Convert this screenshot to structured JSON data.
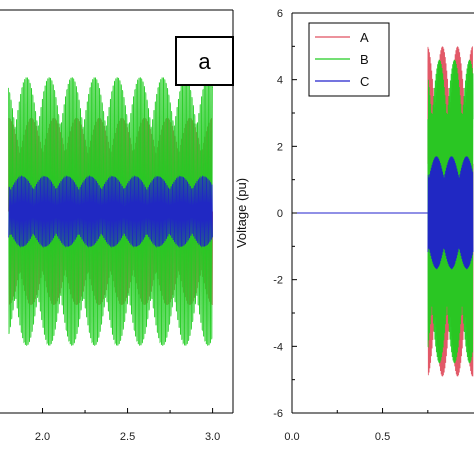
{
  "chart_data": [
    {
      "panel": "a",
      "type": "line",
      "x_ticks": [
        "2.0",
        "2.5",
        "3.0"
      ],
      "xlim": [
        1.75,
        3.12
      ],
      "ylim": [
        -6,
        6
      ],
      "signal_start": 1.8,
      "signal_end": 3.0,
      "series": [
        {
          "color": "#e05060",
          "amplitude": 3.2
        },
        {
          "color": "#20cc20",
          "amplitude": 4.6
        },
        {
          "color": "#2020cc",
          "amplitude": 1.2
        }
      ]
    },
    {
      "type": "line",
      "ylabel": "Voltage (pu)",
      "x_ticks": [
        "0.0",
        "0.5"
      ],
      "y_ticks": [
        "6",
        "4",
        "2",
        "0",
        "-2",
        "-4",
        "-6"
      ],
      "xlim": [
        0,
        1.0
      ],
      "ylim": [
        -6,
        6
      ],
      "grid": false,
      "legend_position": "top-left",
      "signal_start": 0.75,
      "series": [
        {
          "name": "A",
          "color": "#e05060",
          "amplitude": 5.0
        },
        {
          "name": "B",
          "color": "#20cc20",
          "amplitude": 4.6
        },
        {
          "name": "C",
          "color": "#2020cc",
          "amplitude": 1.7
        }
      ],
      "baseline_before_start": 0
    }
  ]
}
